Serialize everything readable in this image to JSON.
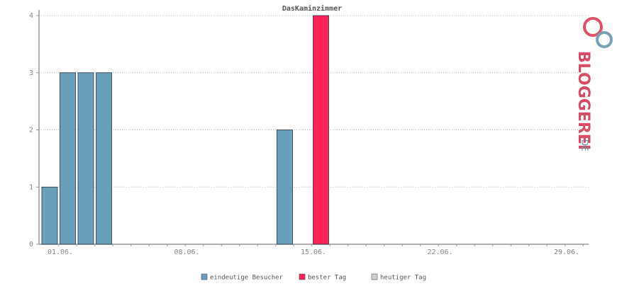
{
  "chart_data": {
    "type": "bar",
    "title": "DasKaminzimmer",
    "categories": [
      "01.06.",
      null,
      null,
      null,
      null,
      null,
      null,
      "08.06.",
      null,
      null,
      null,
      null,
      null,
      null,
      "15.06.",
      null,
      null,
      null,
      null,
      null,
      null,
      "22.06.",
      null,
      null,
      null,
      null,
      null,
      null,
      "29.06.",
      null
    ],
    "series": [
      {
        "name": "eindeutige Besucher",
        "color": "#6a9fb9",
        "values": [
          1,
          3,
          3,
          3,
          0,
          0,
          0,
          0,
          0,
          0,
          0,
          0,
          0,
          2,
          0,
          null,
          0,
          0,
          0,
          0,
          0,
          0,
          0,
          0,
          0,
          0,
          0,
          0,
          0,
          0
        ]
      },
      {
        "name": "bester Tag",
        "color": "#ff2259",
        "values": [
          null,
          null,
          null,
          null,
          null,
          null,
          null,
          null,
          null,
          null,
          null,
          null,
          null,
          null,
          null,
          4,
          null,
          null,
          null,
          null,
          null,
          null,
          null,
          null,
          null,
          null,
          null,
          null,
          null,
          null
        ]
      },
      {
        "name": "heutiger Tag",
        "color": "#d0d0d0",
        "values": [
          null,
          null,
          null,
          null,
          null,
          null,
          null,
          null,
          null,
          null,
          null,
          null,
          null,
          null,
          null,
          null,
          null,
          null,
          null,
          null,
          null,
          null,
          null,
          null,
          null,
          null,
          null,
          null,
          null,
          null
        ]
      }
    ],
    "ylim": [
      0,
      4
    ],
    "yticks": [
      0,
      1,
      2,
      3,
      4
    ],
    "grid": true
  },
  "logo": {
    "main": "BLOGGEREI",
    "suffix": ".DE"
  }
}
